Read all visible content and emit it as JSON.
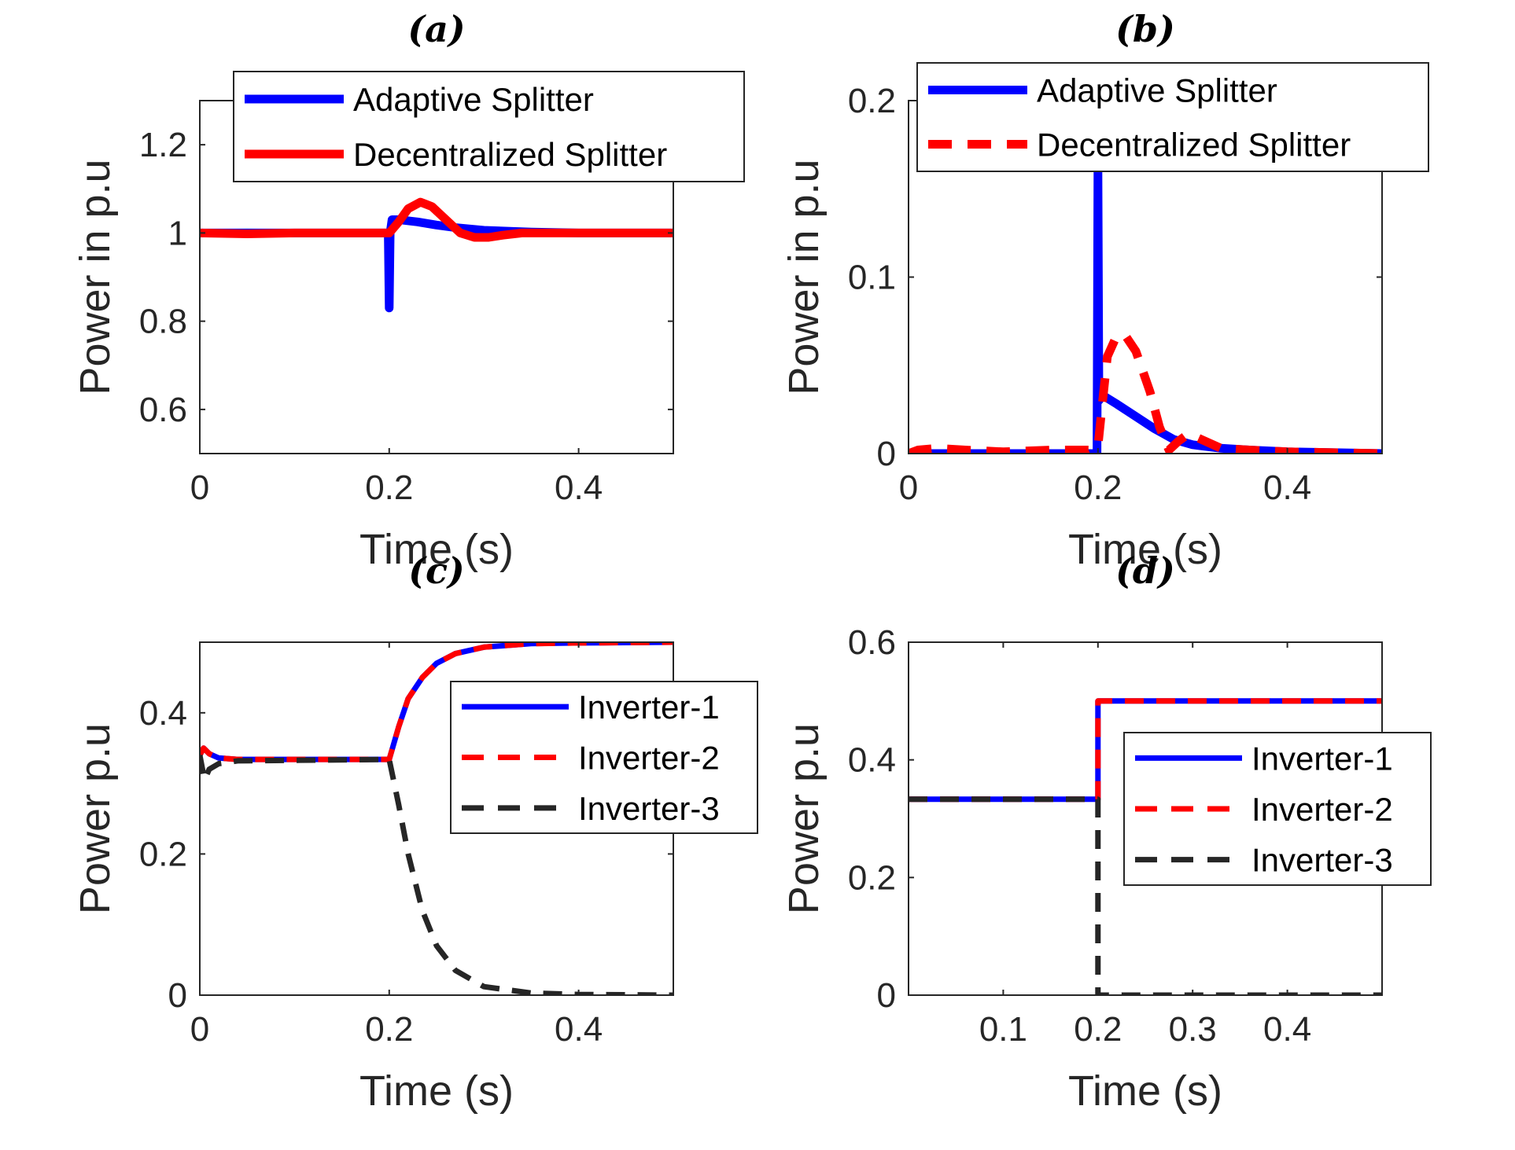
{
  "chart_data": [
    {
      "type": "line",
      "title": "(a)",
      "xlabel": "Time (s)",
      "ylabel": "Power in p.u",
      "xlim": [
        0,
        0.5
      ],
      "ylim": [
        0.5,
        1.3
      ],
      "xticks": [
        0,
        0.2,
        0.4
      ],
      "xticklabels": [
        "0",
        "0.2",
        "0.4"
      ],
      "yticks": [
        0.6,
        0.8,
        1,
        1.2
      ],
      "yticklabels": [
        "0.6",
        "0.8",
        "1",
        "1.2"
      ],
      "legend_position": "top",
      "series": [
        {
          "name": "Adaptive Splitter",
          "color": "#0000ff",
          "style": "solid",
          "points": [
            [
              0,
              1.0
            ],
            [
              0.199,
              1.0
            ],
            [
              0.2,
              0.83
            ],
            [
              0.201,
              1.0
            ],
            [
              0.203,
              1.03
            ],
            [
              0.21,
              1.03
            ],
            [
              0.23,
              1.025
            ],
            [
              0.25,
              1.018
            ],
            [
              0.27,
              1.012
            ],
            [
              0.3,
              1.006
            ],
            [
              0.35,
              1.002
            ],
            [
              0.4,
              1.0
            ],
            [
              0.5,
              1.0
            ]
          ]
        },
        {
          "name": "Decentralized Splitter",
          "color": "#ff0000",
          "style": "solid",
          "points": [
            [
              0,
              1.0
            ],
            [
              0.05,
              0.998
            ],
            [
              0.1,
              1.0
            ],
            [
              0.15,
              1.0
            ],
            [
              0.2,
              1.0
            ],
            [
              0.21,
              1.025
            ],
            [
              0.22,
              1.055
            ],
            [
              0.233,
              1.07
            ],
            [
              0.245,
              1.06
            ],
            [
              0.26,
              1.03
            ],
            [
              0.275,
              1.0
            ],
            [
              0.29,
              0.99
            ],
            [
              0.305,
              0.99
            ],
            [
              0.32,
              0.995
            ],
            [
              0.34,
              1.0
            ],
            [
              0.5,
              1.0
            ]
          ]
        }
      ]
    },
    {
      "type": "line",
      "title": "(b)",
      "xlabel": "Time (s)",
      "ylabel": "Power in p.u",
      "xlim": [
        0,
        0.5
      ],
      "ylim": [
        0,
        0.2
      ],
      "xticks": [
        0,
        0.2,
        0.4
      ],
      "xticklabels": [
        "0",
        "0.2",
        "0.4"
      ],
      "yticks": [
        0,
        0.1,
        0.2
      ],
      "yticklabels": [
        "0",
        "0.1",
        "0.2"
      ],
      "legend_position": "top",
      "series": [
        {
          "name": "Adaptive Splitter",
          "color": "#0000ff",
          "style": "solid",
          "points": [
            [
              0,
              0.0
            ],
            [
              0.199,
              0.0
            ],
            [
              0.2,
              0.16
            ],
            [
              0.201,
              0.03
            ],
            [
              0.205,
              0.033
            ],
            [
              0.22,
              0.028
            ],
            [
              0.24,
              0.021
            ],
            [
              0.26,
              0.014
            ],
            [
              0.28,
              0.008
            ],
            [
              0.3,
              0.005
            ],
            [
              0.33,
              0.003
            ],
            [
              0.36,
              0.002
            ],
            [
              0.4,
              0.001
            ],
            [
              0.5,
              0.0
            ]
          ]
        },
        {
          "name": "Decentralized Splitter",
          "color": "#ff0000",
          "style": "dashed",
          "points": [
            [
              0,
              0.0
            ],
            [
              0.01,
              0.002
            ],
            [
              0.03,
              0.003
            ],
            [
              0.06,
              0.002
            ],
            [
              0.1,
              0.001
            ],
            [
              0.15,
              0.002
            ],
            [
              0.19,
              0.002
            ],
            [
              0.2,
              0.004
            ],
            [
              0.205,
              0.03
            ],
            [
              0.21,
              0.055
            ],
            [
              0.22,
              0.067
            ],
            [
              0.23,
              0.066
            ],
            [
              0.24,
              0.058
            ],
            [
              0.255,
              0.035
            ],
            [
              0.265,
              0.015
            ],
            [
              0.275,
              0.002
            ],
            [
              0.285,
              0.007
            ],
            [
              0.295,
              0.011
            ],
            [
              0.305,
              0.009
            ],
            [
              0.33,
              0.003
            ],
            [
              0.36,
              0.002
            ],
            [
              0.4,
              0.001
            ],
            [
              0.5,
              0.0
            ]
          ]
        }
      ]
    },
    {
      "type": "line",
      "title": "(c)",
      "xlabel": "Time (s)",
      "ylabel": "Power p.u",
      "xlim": [
        0,
        0.5
      ],
      "ylim": [
        0,
        0.5
      ],
      "xticks": [
        0,
        0.2,
        0.4
      ],
      "xticklabels": [
        "0",
        "0.2",
        "0.4"
      ],
      "yticks": [
        0,
        0.2,
        0.4
      ],
      "yticklabels": [
        "0",
        "0.2",
        "0.4"
      ],
      "legend_position": "right",
      "series": [
        {
          "name": "Inverter-1",
          "color": "#0000ff",
          "style": "solid",
          "points": [
            [
              0,
              0.34
            ],
            [
              0.004,
              0.35
            ],
            [
              0.01,
              0.342
            ],
            [
              0.02,
              0.336
            ],
            [
              0.04,
              0.334
            ],
            [
              0.2,
              0.334
            ],
            [
              0.21,
              0.38
            ],
            [
              0.22,
              0.42
            ],
            [
              0.235,
              0.45
            ],
            [
              0.25,
              0.47
            ],
            [
              0.27,
              0.484
            ],
            [
              0.3,
              0.493
            ],
            [
              0.35,
              0.498
            ],
            [
              0.4,
              0.499
            ],
            [
              0.5,
              0.5
            ]
          ]
        },
        {
          "name": "Inverter-2",
          "color": "#ff0000",
          "style": "dashed",
          "points": [
            [
              0,
              0.34
            ],
            [
              0.004,
              0.35
            ],
            [
              0.01,
              0.342
            ],
            [
              0.02,
              0.336
            ],
            [
              0.04,
              0.334
            ],
            [
              0.2,
              0.334
            ],
            [
              0.21,
              0.38
            ],
            [
              0.22,
              0.42
            ],
            [
              0.235,
              0.45
            ],
            [
              0.25,
              0.47
            ],
            [
              0.27,
              0.484
            ],
            [
              0.3,
              0.493
            ],
            [
              0.35,
              0.498
            ],
            [
              0.4,
              0.499
            ],
            [
              0.5,
              0.5
            ]
          ]
        },
        {
          "name": "Inverter-3",
          "color": "#262626",
          "style": "dashed",
          "points": [
            [
              0,
              0.34
            ],
            [
              0.005,
              0.305
            ],
            [
              0.01,
              0.32
            ],
            [
              0.02,
              0.328
            ],
            [
              0.04,
              0.332
            ],
            [
              0.2,
              0.334
            ],
            [
              0.21,
              0.27
            ],
            [
              0.22,
              0.2
            ],
            [
              0.235,
              0.12
            ],
            [
              0.25,
              0.07
            ],
            [
              0.27,
              0.035
            ],
            [
              0.3,
              0.012
            ],
            [
              0.35,
              0.003
            ],
            [
              0.4,
              0.001
            ],
            [
              0.5,
              0.0
            ]
          ]
        }
      ]
    },
    {
      "type": "line",
      "title": "(d)",
      "xlabel": "Time (s)",
      "ylabel": "Power p.u",
      "xlim": [
        0,
        0.5
      ],
      "ylim": [
        0,
        0.6
      ],
      "xticks": [
        0.1,
        0.2,
        0.3,
        0.4
      ],
      "xticklabels": [
        "0.1",
        "0.2",
        "0.3",
        "0.4"
      ],
      "yticks": [
        0,
        0.2,
        0.4,
        0.6
      ],
      "yticklabels": [
        "0",
        "0.2",
        "0.4",
        "0.6"
      ],
      "legend_position": "right",
      "series": [
        {
          "name": "Inverter-1",
          "color": "#0000ff",
          "style": "solid",
          "points": [
            [
              0,
              0.333
            ],
            [
              0.2,
              0.333
            ],
            [
              0.2,
              0.5
            ],
            [
              0.5,
              0.5
            ]
          ]
        },
        {
          "name": "Inverter-2",
          "color": "#ff0000",
          "style": "dashed",
          "points": [
            [
              0,
              0.333
            ],
            [
              0.2,
              0.333
            ],
            [
              0.2,
              0.5
            ],
            [
              0.5,
              0.5
            ]
          ]
        },
        {
          "name": "Inverter-3",
          "color": "#262626",
          "style": "dashed",
          "points": [
            [
              0,
              0.333
            ],
            [
              0.2,
              0.333
            ],
            [
              0.2,
              0.0
            ],
            [
              0.5,
              0.0
            ]
          ]
        }
      ]
    }
  ]
}
